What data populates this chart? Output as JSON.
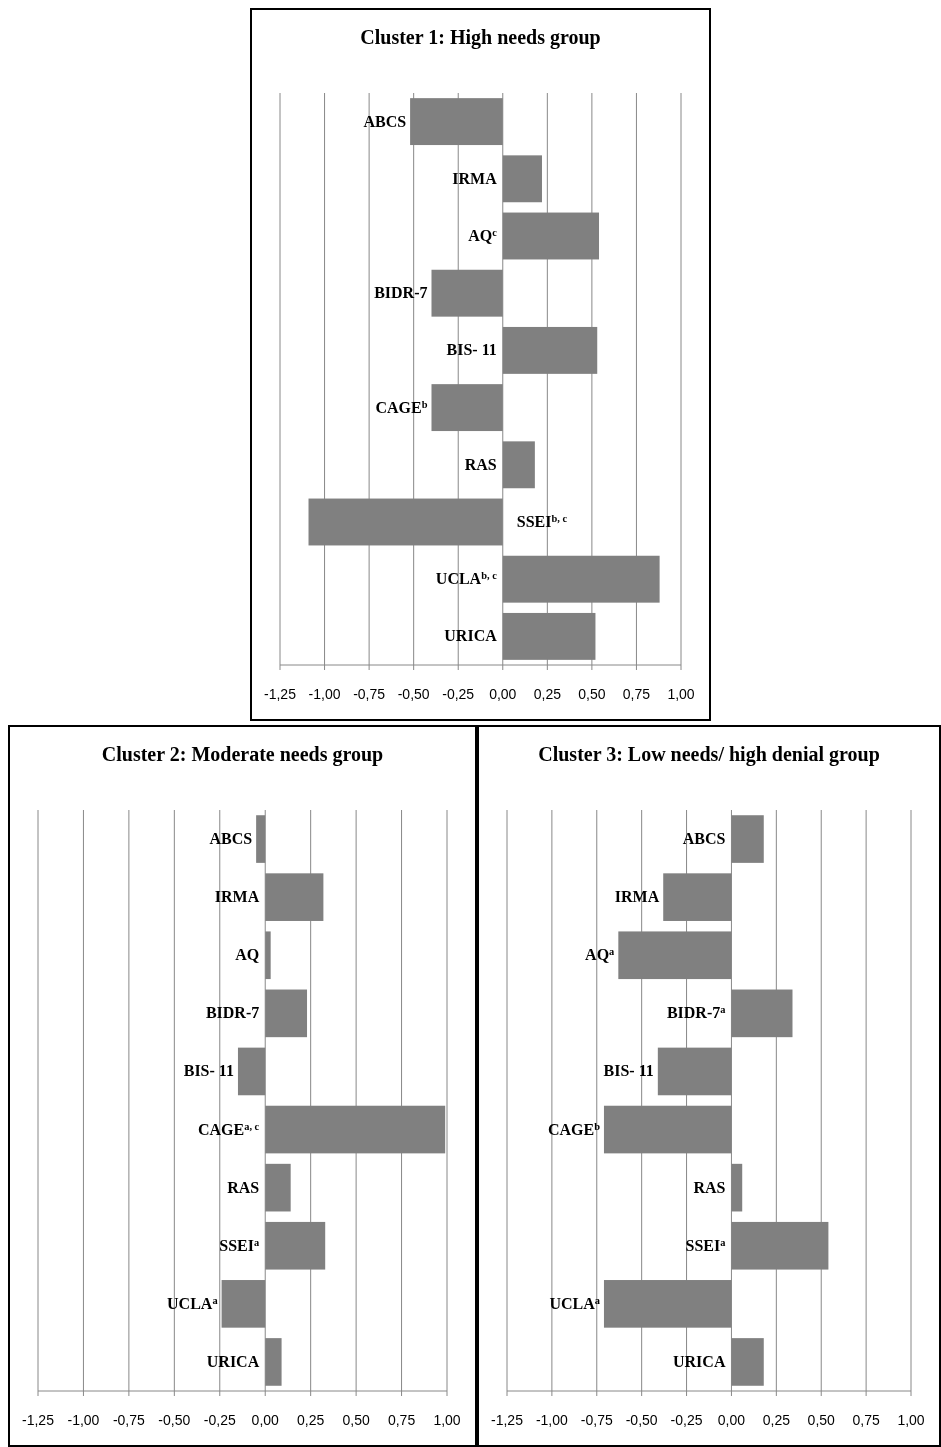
{
  "chart_data": [
    {
      "type": "bar",
      "orientation": "horizontal",
      "title": "Cluster 1: High needs group",
      "categories": [
        "ABCS",
        "IRMA",
        "AQ$^{c}$",
        "BIDR-7",
        "BIS- 11",
        "CAGE$^{b}$",
        "RAS",
        "SSEI$^{b, c}$",
        "UCLA$^{b, c}$",
        "URICA"
      ],
      "color": "#808080",
      "values": [
        -0.52,
        0.22,
        0.54,
        -0.4,
        0.53,
        -0.4,
        0.18,
        -1.09,
        0.88,
        0.52
      ],
      "xlim": [
        -1.25,
        1
      ],
      "xticks": [
        {
          "value": -1.25,
          "label": "-1,25"
        },
        {
          "value": -1,
          "label": "-1,00"
        },
        {
          "value": -0.75,
          "label": "-0,75"
        },
        {
          "value": -0.5,
          "label": "-0,50"
        },
        {
          "value": -0.25,
          "label": "-0,25"
        },
        {
          "value": 0,
          "label": "0,00"
        },
        {
          "value": 0.25,
          "label": "0,25"
        },
        {
          "value": 0.5,
          "label": "0,50"
        },
        {
          "value": 0.75,
          "label": "0,75"
        },
        {
          "value": 1,
          "label": "1,00"
        }
      ],
      "grid": "x"
    },
    {
      "type": "bar",
      "orientation": "horizontal",
      "title": "Cluster 2: Moderate needs group",
      "categories": [
        "ABCS",
        "IRMA",
        "AQ",
        "BIDR-7",
        "BIS- 11",
        "CAGE$^{a, c}$",
        "RAS",
        "SSEI$^{a}$",
        "UCLA$^{a}$",
        "URICA"
      ],
      "color": "#808080",
      "values": [
        -0.05,
        0.32,
        0.03,
        0.23,
        -0.15,
        0.99,
        0.14,
        0.33,
        -0.24,
        0.09
      ],
      "xlim": [
        -1.25,
        1
      ],
      "xticks": [
        {
          "value": -1.25,
          "label": "-1,25"
        },
        {
          "value": -1,
          "label": "-1,00"
        },
        {
          "value": -0.75,
          "label": "-0,75"
        },
        {
          "value": -0.5,
          "label": "-0,50"
        },
        {
          "value": -0.25,
          "label": "-0,25"
        },
        {
          "value": 0,
          "label": "0,00"
        },
        {
          "value": 0.25,
          "label": "0,25"
        },
        {
          "value": 0.5,
          "label": "0,50"
        },
        {
          "value": 0.75,
          "label": "0,75"
        },
        {
          "value": 1,
          "label": "1,00"
        }
      ],
      "grid": "x"
    },
    {
      "type": "bar",
      "orientation": "horizontal",
      "title": "Cluster 3: Low needs/ high denial group",
      "categories": [
        "ABCS",
        "IRMA",
        "AQ$^{a}$",
        "BIDR-7$^{a}$",
        "BIS- 11",
        "CAGE$^{b}$",
        "RAS",
        "SSEI$^{a}$",
        "UCLA$^{a}$",
        "URICA"
      ],
      "color": "#808080",
      "values": [
        0.18,
        -0.38,
        -0.63,
        0.34,
        -0.41,
        -0.71,
        0.06,
        0.54,
        -0.71,
        0.18
      ],
      "xlim": [
        -1.25,
        1
      ],
      "xticks": [
        {
          "value": -1.25,
          "label": "-1,25"
        },
        {
          "value": -1,
          "label": "-1,00"
        },
        {
          "value": -0.75,
          "label": "-0,75"
        },
        {
          "value": -0.5,
          "label": "-0,50"
        },
        {
          "value": -0.25,
          "label": "-0,25"
        },
        {
          "value": 0,
          "label": "0,00"
        },
        {
          "value": 0.25,
          "label": "0,25"
        },
        {
          "value": 0.5,
          "label": "0,50"
        },
        {
          "value": 0.75,
          "label": "0,75"
        },
        {
          "value": 1,
          "label": "1,00"
        }
      ],
      "grid": "x"
    }
  ]
}
